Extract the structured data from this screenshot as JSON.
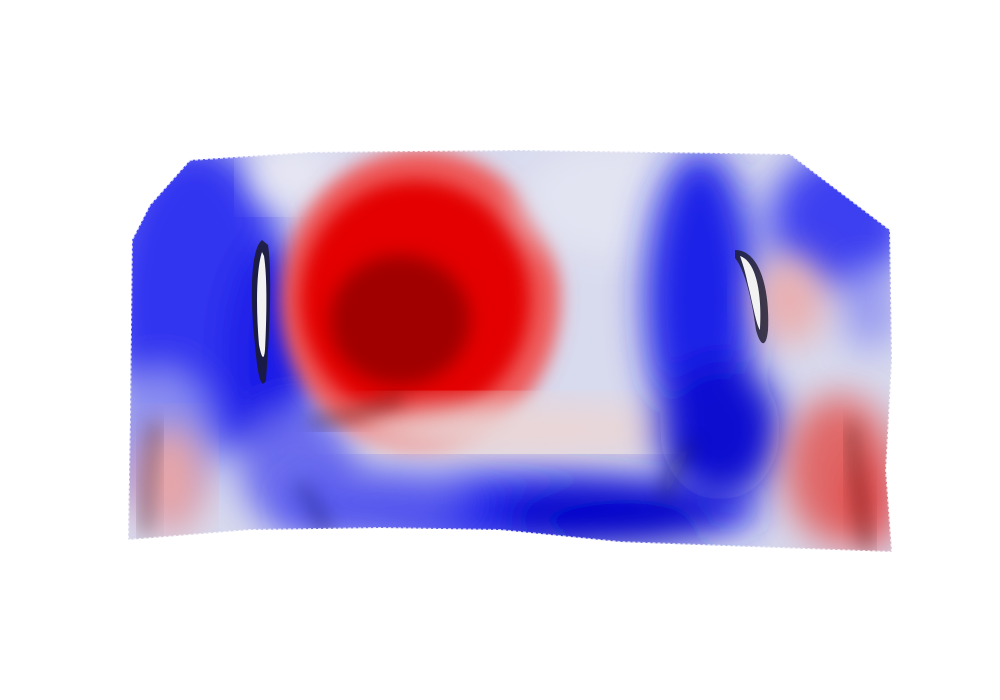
{
  "scene": {
    "background": "#ffffff",
    "object": "deformed-surface-mesh",
    "colormap": {
      "type": "diverging",
      "negative": "#0000cc",
      "neutral": "#dcdcf0",
      "positive": "#cc0000"
    },
    "colors": {
      "deep_red": "#a80000",
      "red": "#e00000",
      "light_red": "#ee8a8a",
      "pale": "#d6d8ee",
      "light_blue": "#8a8ef0",
      "blue": "#2a2cf0",
      "deep_blue": "#0000c8",
      "shadow": "#1a1a2a",
      "fold_highlight": "#f4f4f4"
    }
  }
}
